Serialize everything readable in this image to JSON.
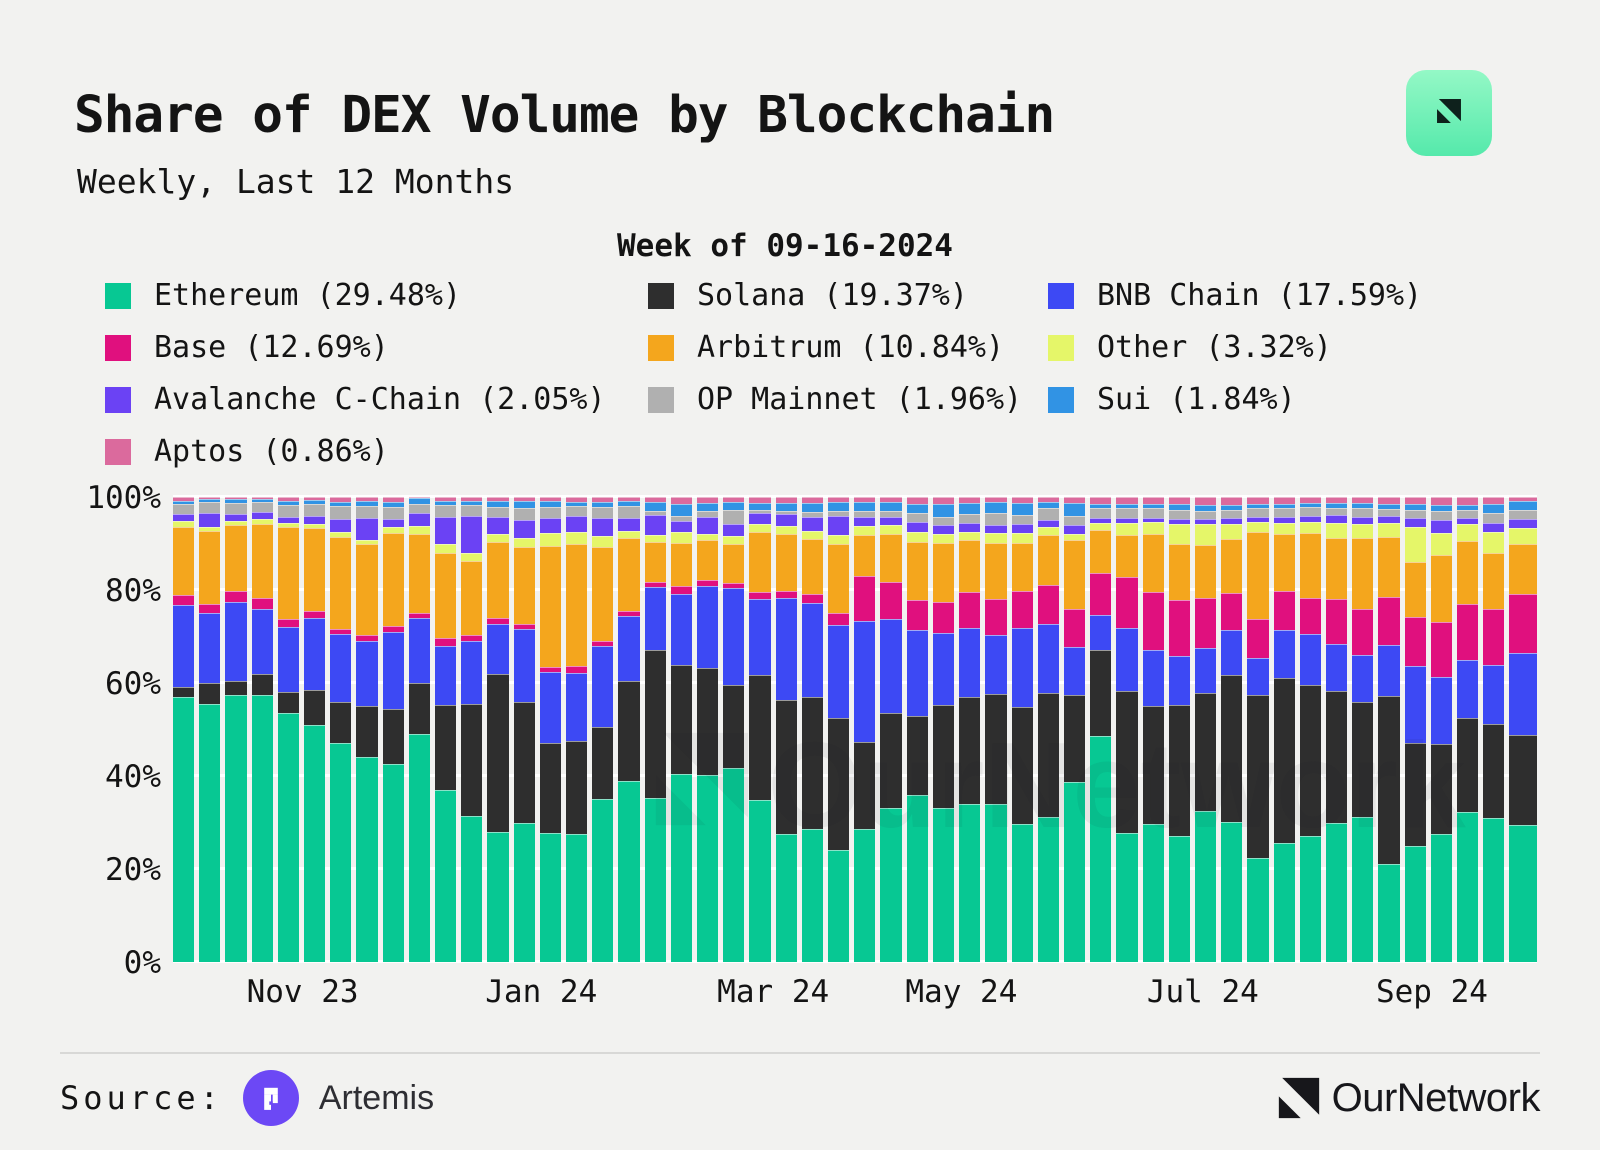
{
  "header": {
    "title": "Share of DEX Volume by Blockchain",
    "subtitle": "Weekly, Last 12 Months"
  },
  "selected_week_label": "Week of 09-16-2024",
  "legend": {
    "items": [
      {
        "id": "ethereum",
        "label": "Ethereum (29.48%)",
        "color": "#07C893"
      },
      {
        "id": "solana",
        "label": "Solana (19.37%)",
        "color": "#2E2E2E"
      },
      {
        "id": "bnb",
        "label": "BNB Chain (17.59%)",
        "color": "#3D49F4"
      },
      {
        "id": "base",
        "label": "Base (12.69%)",
        "color": "#E0107E"
      },
      {
        "id": "arbitrum",
        "label": "Arbitrum (10.84%)",
        "color": "#F4A61D"
      },
      {
        "id": "other",
        "label": "Other (3.32%)",
        "color": "#E5F669"
      },
      {
        "id": "avalanche",
        "label": "Avalanche C-Chain (2.05%)",
        "color": "#6B42F4"
      },
      {
        "id": "op",
        "label": "OP Mainnet (1.96%)",
        "color": "#B0B0B0"
      },
      {
        "id": "sui",
        "label": "Sui (1.84%)",
        "color": "#3193E4"
      },
      {
        "id": "aptos",
        "label": "Aptos (0.86%)",
        "color": "#DB6A9D"
      }
    ]
  },
  "chart_data": {
    "type": "bar",
    "subtype": "stacked-100-percent",
    "title": "Share of DEX Volume by Blockchain",
    "unit": "%",
    "grid": true,
    "y_axis": {
      "range": [
        0,
        100
      ],
      "ticks": [
        {
          "label": "0%",
          "value": 0
        },
        {
          "label": "20%",
          "value": 20
        },
        {
          "label": "40%",
          "value": 40
        },
        {
          "label": "60%",
          "value": 60
        },
        {
          "label": "80%",
          "value": 80
        },
        {
          "label": "100%",
          "value": 100
        }
      ]
    },
    "x_axis": {
      "month_tick_labels": [
        {
          "label": "Nov 23",
          "pos": 0.095
        },
        {
          "label": "Jan 24",
          "pos": 0.27
        },
        {
          "label": "Mar 24",
          "pos": 0.44
        },
        {
          "label": "May 24",
          "pos": 0.578
        },
        {
          "label": "Jul 24",
          "pos": 0.755
        },
        {
          "label": "Sep 24",
          "pos": 0.923
        }
      ]
    },
    "weeks": [
      "09-25-2023",
      "10-02-2023",
      "10-09-2023",
      "10-16-2023",
      "10-23-2023",
      "10-30-2023",
      "11-06-2023",
      "11-13-2023",
      "11-20-2023",
      "11-27-2023",
      "12-04-2023",
      "12-11-2023",
      "12-18-2023",
      "12-25-2023",
      "01-01-2024",
      "01-08-2024",
      "01-15-2024",
      "01-22-2024",
      "01-29-2024",
      "02-05-2024",
      "02-12-2024",
      "02-19-2024",
      "02-26-2024",
      "03-04-2024",
      "03-11-2024",
      "03-18-2024",
      "03-25-2024",
      "04-01-2024",
      "04-08-2024",
      "04-15-2024",
      "04-22-2024",
      "04-29-2024",
      "05-06-2024",
      "05-13-2024",
      "05-20-2024",
      "05-27-2024",
      "06-03-2024",
      "06-10-2024",
      "06-17-2024",
      "06-24-2024",
      "07-01-2024",
      "07-08-2024",
      "07-15-2024",
      "07-22-2024",
      "07-29-2024",
      "08-05-2024",
      "08-12-2024",
      "08-19-2024",
      "08-26-2024",
      "09-02-2024",
      "09-09-2024",
      "09-16-2024"
    ],
    "stack_order_bottom_to_top": [
      "ethereum",
      "solana",
      "bnb",
      "base",
      "arbitrum",
      "other",
      "avalanche",
      "op",
      "sui",
      "aptos"
    ],
    "series": [
      {
        "id": "ethereum",
        "name": "Ethereum",
        "color": "#07C893",
        "values": [
          57,
          55.5,
          57.5,
          57.5,
          53.5,
          51,
          47,
          44,
          42.5,
          49,
          37,
          31.5,
          28,
          30,
          27.7,
          27.5,
          35,
          39,
          35.2,
          40.4,
          40.2,
          41.8,
          34.8,
          27.5,
          28.5,
          24,
          28.7,
          33.2,
          35.9,
          33.2,
          33.9,
          34,
          29.6,
          31.2,
          38.8,
          48.5,
          27.8,
          29.6,
          27.2,
          32.5,
          30.2,
          22.3,
          25.5,
          27,
          30,
          31.2,
          21,
          25,
          27.5,
          32.2,
          30.9,
          29.48
        ]
      },
      {
        "id": "solana",
        "name": "Solana",
        "color": "#2E2E2E",
        "values": [
          2.2,
          4.5,
          3,
          4.5,
          4.5,
          7.5,
          9,
          11,
          12,
          11,
          18.3,
          24,
          34,
          26,
          19.3,
          20,
          15.5,
          21.4,
          32,
          23.4,
          23,
          17.8,
          26.9,
          28.8,
          28.5,
          28.5,
          18.7,
          20.3,
          17,
          22.1,
          23.2,
          23.6,
          25.3,
          26.6,
          18.6,
          18.6,
          30.5,
          25.5,
          28.1,
          25.3,
          31.5,
          35.1,
          35.5,
          32.6,
          28.3,
          24.8,
          36.2,
          22.2,
          19.4,
          20.2,
          20.2,
          19.37
        ]
      },
      {
        "id": "bnb",
        "name": "BNB Chain",
        "color": "#3D49F4",
        "values": [
          17.5,
          15,
          17,
          14,
          14,
          15.5,
          14.5,
          14,
          16.5,
          14,
          12.7,
          13.5,
          10.6,
          15.6,
          15.4,
          14.6,
          17.5,
          14,
          13.4,
          15.3,
          17.7,
          20.8,
          16.3,
          22,
          20.2,
          20,
          26,
          20.2,
          18.5,
          15.5,
          14.8,
          12.7,
          17,
          14.8,
          10.4,
          7.5,
          13.6,
          12,
          10.5,
          9.7,
          9.7,
          8,
          10.4,
          10.9,
          10,
          10,
          10.9,
          16.5,
          14.5,
          12.6,
          12.8,
          17.59
        ]
      },
      {
        "id": "base",
        "name": "Base",
        "color": "#E0107E",
        "values": [
          2.2,
          2.1,
          2.2,
          2.2,
          1.7,
          1.5,
          1.2,
          1.3,
          1.3,
          1.1,
          1.6,
          1.4,
          1.3,
          1.1,
          1.1,
          1.5,
          1,
          1.1,
          1.1,
          1.8,
          1.3,
          1.2,
          1.6,
          1.5,
          2,
          2.6,
          9.7,
          8.1,
          6.4,
          6.7,
          7.7,
          7.7,
          7.9,
          8.5,
          8.2,
          9.1,
          11,
          12.5,
          12,
          10.8,
          7.9,
          8.3,
          8.4,
          7.7,
          9.7,
          10,
          10.3,
          10.6,
          11.8,
          12,
          12.1,
          12.69
        ]
      },
      {
        "id": "arbitrum",
        "name": "Arbitrum",
        "color": "#F4A61D",
        "values": [
          14.6,
          15.5,
          14.3,
          16,
          19.8,
          17.8,
          19.8,
          19.7,
          20,
          17,
          18.3,
          15.8,
          16.4,
          16.6,
          26,
          26.3,
          20.3,
          15.6,
          8.7,
          9.3,
          8.6,
          8.2,
          12.9,
          12.2,
          11.7,
          14.7,
          8.8,
          10.2,
          12.6,
          12.6,
          11.2,
          12.2,
          10.3,
          10.7,
          14.8,
          9.2,
          8.9,
          12.4,
          12,
          11.3,
          11.6,
          18.7,
          12.2,
          14,
          13.2,
          15.1,
          12.9,
          11.8,
          14.4,
          13.5,
          12,
          10.84
        ]
      },
      {
        "id": "other",
        "name": "Other",
        "color": "#E5F669",
        "values": [
          1.3,
          1,
          0.9,
          1,
          1,
          1,
          1,
          0.8,
          1.2,
          1.7,
          1.9,
          1.7,
          1.7,
          1.8,
          2.7,
          2.5,
          2.3,
          1.5,
          1.5,
          2.3,
          1.2,
          1.9,
          1.6,
          1.8,
          1.8,
          2,
          1.8,
          2,
          2.1,
          1.9,
          1.7,
          2.1,
          2.2,
          1.8,
          1.2,
          1.6,
          2.7,
          2.7,
          4.4,
          4.5,
          3.4,
          2.2,
          2.5,
          2.5,
          3.2,
          3.2,
          3.2,
          7.5,
          4.6,
          3.6,
          4.5,
          3.32
        ]
      },
      {
        "id": "avalanche",
        "name": "Avalanche C-Chain",
        "color": "#6B42F4",
        "values": [
          1.5,
          3,
          1.5,
          1.5,
          1.3,
          1.7,
          2.8,
          4.7,
          1.8,
          2.7,
          6,
          8,
          3.8,
          4,
          3.4,
          3.6,
          4,
          3,
          4.3,
          2.4,
          3.8,
          2.6,
          2.4,
          2.5,
          3,
          4.1,
          2.1,
          1.8,
          2.2,
          2,
          2,
          1.7,
          1.8,
          1.5,
          2,
          1.1,
          1.1,
          0.9,
          1.1,
          1.1,
          1.2,
          1.1,
          1.2,
          1.3,
          1.7,
          1.5,
          1.4,
          2,
          2.9,
          1.5,
          2,
          2.05
        ]
      },
      {
        "id": "op",
        "name": "OP Mainnet",
        "color": "#B0B0B0",
        "values": [
          2.2,
          2.3,
          2.4,
          2.2,
          2.5,
          2.5,
          2.7,
          2.5,
          2.5,
          2,
          2.5,
          2.3,
          2.1,
          2.6,
          2.3,
          2,
          2.2,
          2.4,
          0.8,
          1.1,
          1.1,
          2.9,
          0.7,
          0.7,
          1,
          1,
          1.2,
          1.2,
          1.8,
          1.8,
          1.8,
          2.5,
          2,
          2.5,
          1.9,
          2,
          2,
          2,
          1.9,
          1.9,
          1.7,
          1.9,
          1.9,
          1.8,
          1.5,
          1.9,
          1.5,
          1.7,
          1.8,
          1.6,
          2,
          1.96
        ]
      },
      {
        "id": "sui",
        "name": "Sui",
        "color": "#3193E4",
        "values": [
          0.7,
          0.6,
          0.7,
          0.6,
          0.9,
          0.8,
          1,
          1.2,
          1.2,
          1.2,
          0.9,
          1,
          1.3,
          1.4,
          1.2,
          1,
          1.2,
          1.2,
          1.9,
          2.5,
          1.9,
          1.8,
          1.6,
          1.8,
          2,
          2,
          2,
          2,
          2.1,
          2.8,
          2.5,
          2.5,
          2.7,
          1.4,
          2.9,
          1,
          1,
          1,
          1.4,
          1.1,
          1.2,
          1,
          1,
          1,
          1.1,
          1,
          1.2,
          1.2,
          1.3,
          1.2,
          2,
          1.84
        ]
      },
      {
        "id": "aptos",
        "name": "Aptos",
        "color": "#DB6A9D",
        "values": [
          0.8,
          0.5,
          0.5,
          0.5,
          0.8,
          0.7,
          1,
          0.8,
          1,
          0.3,
          0.8,
          0.8,
          0.8,
          0.9,
          0.9,
          1,
          1,
          0.8,
          1.1,
          1.5,
          1.2,
          1,
          1.2,
          1.2,
          1.3,
          1.1,
          1,
          1,
          1.4,
          1.4,
          1.2,
          1,
          1.2,
          1,
          1.2,
          1.4,
          1.4,
          1.4,
          1.4,
          1.8,
          1.6,
          1.4,
          1.4,
          1.2,
          1.3,
          1.3,
          1.4,
          1.5,
          1.8,
          1.6,
          1.5,
          0.86
        ]
      }
    ]
  },
  "watermark": {
    "text": "OurNetwork"
  },
  "footer": {
    "source_label": "Source:",
    "source_name": "Artemis",
    "brand_name": "OurNetwork"
  }
}
